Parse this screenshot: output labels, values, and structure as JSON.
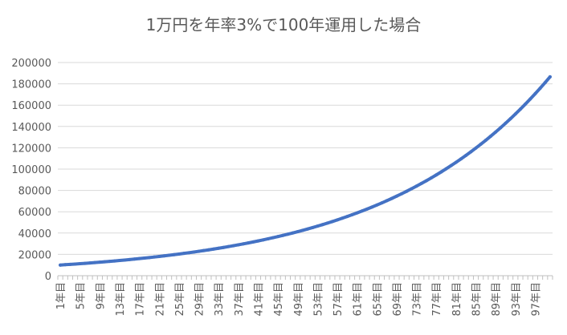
{
  "chart_data": {
    "type": "line",
    "title": "1万円を年率3%で100年運用した場合",
    "xlabel": "",
    "ylabel": "",
    "ylim": [
      0,
      200000
    ],
    "y_ticks": [
      "0",
      "20000",
      "40000",
      "60000",
      "80000",
      "100000",
      "120000",
      "140000",
      "160000",
      "180000",
      "200000"
    ],
    "x_tick_labels": [
      "1年目",
      "5年目",
      "9年目",
      "13年目",
      "17年目",
      "21年目",
      "25年目",
      "29年目",
      "33年目",
      "37年目",
      "41年目",
      "45年目",
      "49年目",
      "53年目",
      "57年目",
      "61年目",
      "65年目",
      "69年目",
      "73年目",
      "77年目",
      "81年目",
      "85年目",
      "89年目",
      "93年目",
      "97年目"
    ],
    "grid": true,
    "legend": "none",
    "line_color": "#4472c4",
    "categories": [
      "1年目",
      "2年目",
      "3年目",
      "4年目",
      "5年目",
      "6年目",
      "7年目",
      "8年目",
      "9年目",
      "10年目",
      "11年目",
      "12年目",
      "13年目",
      "14年目",
      "15年目",
      "16年目",
      "17年目",
      "18年目",
      "19年目",
      "20年目",
      "21年目",
      "22年目",
      "23年目",
      "24年目",
      "25年目",
      "26年目",
      "27年目",
      "28年目",
      "29年目",
      "30年目",
      "31年目",
      "32年目",
      "33年目",
      "34年目",
      "35年目",
      "36年目",
      "37年目",
      "38年目",
      "39年目",
      "40年目",
      "41年目",
      "42年目",
      "43年目",
      "44年目",
      "45年目",
      "46年目",
      "47年目",
      "48年目",
      "49年目",
      "50年目",
      "51年目",
      "52年目",
      "53年目",
      "54年目",
      "55年目",
      "56年目",
      "57年目",
      "58年目",
      "59年目",
      "60年目",
      "61年目",
      "62年目",
      "63年目",
      "64年目",
      "65年目",
      "66年目",
      "67年目",
      "68年目",
      "69年目",
      "70年目",
      "71年目",
      "72年目",
      "73年目",
      "74年目",
      "75年目",
      "76年目",
      "77年目",
      "78年目",
      "79年目",
      "80年目",
      "81年目",
      "82年目",
      "83年目",
      "84年目",
      "85年目",
      "86年目",
      "87年目",
      "88年目",
      "89年目",
      "90年目",
      "91年目",
      "92年目",
      "93年目",
      "94年目",
      "95年目",
      "96年目",
      "97年目",
      "98年目",
      "99年目",
      "100年目"
    ],
    "values": [
      10000,
      10300,
      10609,
      10927,
      11255,
      11593,
      11941,
      12299,
      12668,
      13048,
      13439,
      13842,
      14258,
      14685,
      15126,
      15580,
      16047,
      16528,
      17024,
      17535,
      18061,
      18603,
      19161,
      19736,
      20328,
      20938,
      21566,
      22213,
      22879,
      23566,
      24273,
      25001,
      25751,
      26523,
      27319,
      28139,
      28983,
      29852,
      30748,
      31670,
      32620,
      33599,
      34607,
      35645,
      36715,
      37816,
      38950,
      40119,
      41323,
      42562,
      43839,
      45154,
      46509,
      47904,
      49341,
      50821,
      52346,
      53917,
      55534,
      57200,
      58916,
      60684,
      62504,
      64379,
      66311,
      68300,
      70349,
      72459,
      74633,
      76872,
      79178,
      81554,
      84000,
      86520,
      89116,
      91789,
      94543,
      97379,
      100301,
      103310,
      106409,
      109601,
      112889,
      116276,
      119764,
      123357,
      127058,
      130870,
      134796,
      138839,
      143005,
      147295,
      151714,
      156265,
      160953,
      165782,
      170755,
      175878,
      181154,
      186589
    ]
  }
}
